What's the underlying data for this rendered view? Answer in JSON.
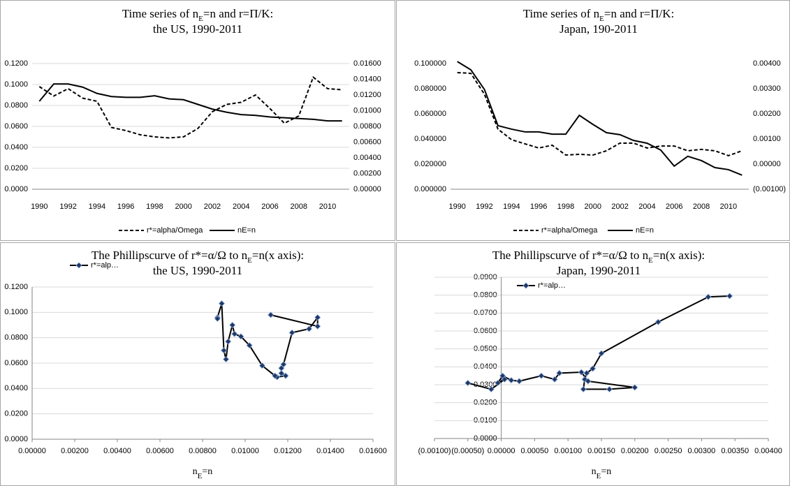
{
  "chart_data": [
    {
      "type": "line",
      "title": [
        "Time series of n",
        "E",
        "=n and r=Π/K:",
        "the US, 1990-2011"
      ],
      "categories": [
        "1990",
        null,
        "1992",
        null,
        "1994",
        null,
        "1996",
        null,
        "1998",
        null,
        "2000",
        null,
        "2002",
        null,
        "2004",
        null,
        "2006",
        null,
        "2008",
        null,
        "2010",
        null
      ],
      "series": [
        {
          "name": "r*=alpha/Omega",
          "color": "#000000",
          "line_style": "dashed",
          "values": [
            0.098,
            0.089,
            0.096,
            0.087,
            0.084,
            0.059,
            0.056,
            0.052,
            0.05,
            0.049,
            0.05,
            0.058,
            0.074,
            0.081,
            0.083,
            0.09,
            0.077,
            0.063,
            0.07,
            0.107,
            0.096,
            0.095
          ]
        },
        {
          "name": "nE=n",
          "color": "#000000",
          "line_style": "solid",
          "axis": "y2",
          "values": [
            0.0112,
            0.0134,
            0.0134,
            0.013,
            0.0122,
            0.0118,
            0.0117,
            0.0117,
            0.0119,
            0.0115,
            0.0114,
            0.0108,
            0.0102,
            0.0098,
            0.0095,
            0.0094,
            0.0092,
            0.0091,
            0.009,
            0.0089,
            0.0087,
            0.0087
          ]
        }
      ],
      "ylim": [
        0,
        0.12
      ],
      "yticks": [
        {
          "value": 0,
          "label": "0.0000"
        },
        {
          "value": 0.02,
          "label": "0.0200"
        },
        {
          "value": 0.04,
          "label": "0.0400"
        },
        {
          "value": 0.06,
          "label": "0.0600"
        },
        {
          "value": 0.08,
          "label": "0.0800"
        },
        {
          "value": 0.1,
          "label": "0.1000"
        },
        {
          "value": 0.12,
          "label": "0.1200"
        }
      ],
      "y2lim": [
        0,
        0.016
      ],
      "y2ticks": [
        {
          "value": 0,
          "label": "0.00000"
        },
        {
          "value": 0.002,
          "label": "0.00200"
        },
        {
          "value": 0.004,
          "label": "0.00400"
        },
        {
          "value": 0.006,
          "label": "0.00600"
        },
        {
          "value": 0.008,
          "label": "0.00800"
        },
        {
          "value": 0.01,
          "label": "0.01000"
        },
        {
          "value": 0.012,
          "label": "0.01200"
        },
        {
          "value": 0.014,
          "label": "0.01400"
        },
        {
          "value": 0.016,
          "label": "0.01600"
        }
      ],
      "grid": true,
      "legend": "bottom"
    },
    {
      "type": "line",
      "title": [
        "Time series of n",
        "E",
        "=n and r=Π/K:",
        "Japan, 190-2011"
      ],
      "categories": [
        "1990",
        null,
        "1992",
        null,
        "1994",
        null,
        "1996",
        null,
        "1998",
        null,
        "2000",
        null,
        "2002",
        null,
        "2004",
        null,
        "2006",
        null,
        "2008",
        null,
        "2010",
        null
      ],
      "series": [
        {
          "name": "r*=alpha/Omega",
          "color": "#000000",
          "line_style": "dashed",
          "values": [
            0.0928,
            0.0922,
            0.0756,
            0.0478,
            0.0394,
            0.0361,
            0.0328,
            0.035,
            0.0272,
            0.0278,
            0.0272,
            0.0306,
            0.0367,
            0.0367,
            0.0328,
            0.0344,
            0.0344,
            0.0306,
            0.0317,
            0.0306,
            0.0267,
            0.0306
          ]
        },
        {
          "name": "nE=n",
          "color": "#000000",
          "line_style": "solid",
          "axis": "y2",
          "values": [
            0.00408,
            0.00375,
            0.00297,
            0.00153,
            0.00139,
            0.00128,
            0.00128,
            0.00119,
            0.00119,
            0.00194,
            0.00158,
            0.00125,
            0.00117,
            0.00094,
            0.00083,
            0.00056,
            -8e-05,
            0.00031,
            0.00014,
            -0.00014,
            -0.00022,
            -0.00044
          ]
        }
      ],
      "ylim": [
        0,
        0.1
      ],
      "yticks": [
        {
          "value": 0,
          "label": "0.000000"
        },
        {
          "value": 0.02,
          "label": "0.020000"
        },
        {
          "value": 0.04,
          "label": "0.040000"
        },
        {
          "value": 0.06,
          "label": "0.060000"
        },
        {
          "value": 0.08,
          "label": "0.080000"
        },
        {
          "value": 0.1,
          "label": "0.100000"
        }
      ],
      "y2lim": [
        -0.001,
        0.004
      ],
      "y2ticks": [
        {
          "value": -0.001,
          "label": "(0.00100)"
        },
        {
          "value": 0,
          "label": "0.00000"
        },
        {
          "value": 0.001,
          "label": "0.00100"
        },
        {
          "value": 0.002,
          "label": "0.00200"
        },
        {
          "value": 0.003,
          "label": "0.00300"
        },
        {
          "value": 0.004,
          "label": "0.00400"
        }
      ],
      "grid": false,
      "legend": "bottom"
    },
    {
      "type": "scatter",
      "title": [
        "The Phillipscurve of r*=α/Ω to n",
        "E",
        "=n(x axis):",
        "the US, 1990-2011"
      ],
      "xlabel": [
        "n",
        "E",
        "=n"
      ],
      "x": [
        0.0112,
        0.0134,
        0.0134,
        0.013,
        0.0122,
        0.0118,
        0.0117,
        0.0117,
        0.0119,
        0.0115,
        0.0114,
        0.0108,
        0.0102,
        0.0098,
        0.0095,
        0.0094,
        0.0092,
        0.0091,
        0.009,
        0.0089,
        0.0087,
        0.0087
      ],
      "series": [
        {
          "name": "r*=alp…",
          "color": "#000000",
          "marker": "diamond",
          "marker_color": "#1f3864",
          "values": [
            0.098,
            0.089,
            0.096,
            0.087,
            0.084,
            0.059,
            0.056,
            0.052,
            0.05,
            0.049,
            0.05,
            0.058,
            0.074,
            0.081,
            0.083,
            0.09,
            0.077,
            0.063,
            0.07,
            0.107,
            0.096,
            0.095
          ]
        }
      ],
      "xlim": [
        0,
        0.016
      ],
      "xticks": [
        {
          "value": 0,
          "label": "0.00000"
        },
        {
          "value": 0.002,
          "label": "0.00200"
        },
        {
          "value": 0.004,
          "label": "0.00400"
        },
        {
          "value": 0.006,
          "label": "0.00600"
        },
        {
          "value": 0.008,
          "label": "0.00800"
        },
        {
          "value": 0.01,
          "label": "0.01000"
        },
        {
          "value": 0.012,
          "label": "0.01200"
        },
        {
          "value": 0.014,
          "label": "0.01400"
        },
        {
          "value": 0.016,
          "label": "0.01600"
        }
      ],
      "ylim": [
        0,
        0.12
      ],
      "yticks": [
        {
          "value": 0,
          "label": "0.0000"
        },
        {
          "value": 0.02,
          "label": "0.0200"
        },
        {
          "value": 0.04,
          "label": "0.0400"
        },
        {
          "value": 0.06,
          "label": "0.0600"
        },
        {
          "value": 0.08,
          "label": "0.0800"
        },
        {
          "value": 0.1,
          "label": "0.1000"
        },
        {
          "value": 0.12,
          "label": "0.1200"
        }
      ],
      "grid": true,
      "legend": "top-left"
    },
    {
      "type": "scatter",
      "title": [
        "The Phillipscurve of r*=α/Ω to n",
        "E",
        "=n(x axis):",
        "Japan, 1990-2011"
      ],
      "xlabel": [
        "n",
        "E",
        "=n"
      ],
      "x": [
        0.00342,
        0.0031,
        0.00235,
        0.0015,
        0.00137,
        0.00128,
        0.00125,
        0.00123,
        0.00162,
        0.002,
        0.0013,
        0.0012,
        0.00087,
        0.0008,
        0.0006,
        0.00027,
        0.00015,
        2e-05,
        -5e-05,
        5e-05,
        -0.00015,
        -0.0005
      ],
      "series": [
        {
          "name": "r*=alp…",
          "color": "#000000",
          "marker": "diamond",
          "marker_color": "#1f3864",
          "values": [
            0.0795,
            0.079,
            0.065,
            0.0475,
            0.039,
            0.0365,
            0.033,
            0.0275,
            0.0275,
            0.0285,
            0.032,
            0.037,
            0.0365,
            0.033,
            0.035,
            0.032,
            0.0325,
            0.035,
            0.031,
            0.033,
            0.0275,
            0.031
          ]
        }
      ],
      "xlim": [
        -0.001,
        0.004
      ],
      "xticks": [
        {
          "value": -0.001,
          "label": "(0.00100)"
        },
        {
          "value": -0.0005,
          "label": "(0.00050)"
        },
        {
          "value": 0,
          "label": "0.00000"
        },
        {
          "value": 0.0005,
          "label": "0.00050"
        },
        {
          "value": 0.001,
          "label": "0.00100"
        },
        {
          "value": 0.0015,
          "label": "0.00150"
        },
        {
          "value": 0.002,
          "label": "0.00200"
        },
        {
          "value": 0.0025,
          "label": "0.00250"
        },
        {
          "value": 0.003,
          "label": "0.00300"
        },
        {
          "value": 0.0035,
          "label": "0.00350"
        },
        {
          "value": 0.004,
          "label": "0.00400"
        }
      ],
      "ylim": [
        0,
        0.09
      ],
      "yticks": [
        {
          "value": 0,
          "label": "0.0000"
        },
        {
          "value": 0.01,
          "label": "0.0100"
        },
        {
          "value": 0.02,
          "label": "0.0200"
        },
        {
          "value": 0.03,
          "label": "0.0300"
        },
        {
          "value": 0.04,
          "label": "0.0400"
        },
        {
          "value": 0.05,
          "label": "0.0500"
        },
        {
          "value": 0.06,
          "label": "0.0600"
        },
        {
          "value": 0.07,
          "label": "0.0700"
        },
        {
          "value": 0.08,
          "label": "0.0800"
        },
        {
          "value": 0.09,
          "label": "0.0900"
        }
      ],
      "grid": true,
      "legend": "top-left"
    }
  ]
}
